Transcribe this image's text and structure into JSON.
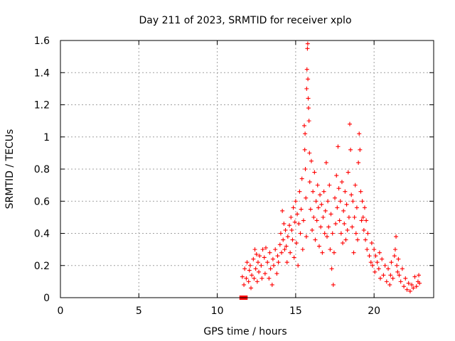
{
  "chart_data": {
    "type": "scatter",
    "title": "Day 211 of 2023, SRMTID for receiver xplo",
    "xlabel": "GPS time / hours",
    "ylabel": "SRMTID / TECUs",
    "xlim": [
      0,
      23.8
    ],
    "ylim": [
      0,
      1.6
    ],
    "xticks": [
      0,
      5,
      10,
      15,
      20
    ],
    "xtick_labels": [
      "0",
      "5",
      "10",
      "15",
      "20"
    ],
    "yticks": [
      0,
      0.2,
      0.4,
      0.6,
      0.8,
      1.0,
      1.2,
      1.4,
      1.6
    ],
    "ytick_labels": [
      "0",
      "0.2",
      "0.4",
      "0.6",
      "0.8",
      "1",
      "1.2",
      "1.4",
      "1.6"
    ],
    "grid": true,
    "marker": "plus",
    "color": "#ff0000",
    "series": [
      {
        "name": "SRMTID",
        "points": [
          [
            11.55,
            0.0
          ],
          [
            11.8,
            0.0
          ],
          [
            11.6,
            0.13
          ],
          [
            11.7,
            0.08
          ],
          [
            11.75,
            0.18
          ],
          [
            11.85,
            0.12
          ],
          [
            11.9,
            0.22
          ],
          [
            12.0,
            0.1
          ],
          [
            12.05,
            0.17
          ],
          [
            12.1,
            0.2
          ],
          [
            12.15,
            0.06
          ],
          [
            12.2,
            0.14
          ],
          [
            12.3,
            0.24
          ],
          [
            12.35,
            0.12
          ],
          [
            12.4,
            0.3
          ],
          [
            12.45,
            0.18
          ],
          [
            12.5,
            0.27
          ],
          [
            12.55,
            0.1
          ],
          [
            12.6,
            0.22
          ],
          [
            12.65,
            0.16
          ],
          [
            12.7,
            0.26
          ],
          [
            12.8,
            0.2
          ],
          [
            12.85,
            0.12
          ],
          [
            12.9,
            0.3
          ],
          [
            13.0,
            0.25
          ],
          [
            13.05,
            0.15
          ],
          [
            13.1,
            0.31
          ],
          [
            13.2,
            0.22
          ],
          [
            13.3,
            0.12
          ],
          [
            13.35,
            0.28
          ],
          [
            13.4,
            0.18
          ],
          [
            13.5,
            0.08
          ],
          [
            13.55,
            0.24
          ],
          [
            13.6,
            0.2
          ],
          [
            13.7,
            0.3
          ],
          [
            13.8,
            0.15
          ],
          [
            13.85,
            0.26
          ],
          [
            13.9,
            0.22
          ],
          [
            14.0,
            0.33
          ],
          [
            14.05,
            0.4
          ],
          [
            14.1,
            0.28
          ],
          [
            14.15,
            0.54
          ],
          [
            14.2,
            0.36
          ],
          [
            14.25,
            0.46
          ],
          [
            14.3,
            0.3
          ],
          [
            14.35,
            0.42
          ],
          [
            14.4,
            0.32
          ],
          [
            14.45,
            0.22
          ],
          [
            14.5,
            0.38
          ],
          [
            14.6,
            0.45
          ],
          [
            14.65,
            0.28
          ],
          [
            14.7,
            0.5
          ],
          [
            14.75,
            0.42
          ],
          [
            14.8,
            0.36
          ],
          [
            14.85,
            0.56
          ],
          [
            14.9,
            0.25
          ],
          [
            14.95,
            0.47
          ],
          [
            15.0,
            0.6
          ],
          [
            15.05,
            0.34
          ],
          [
            15.1,
            0.52
          ],
          [
            15.15,
            0.2
          ],
          [
            15.2,
            0.46
          ],
          [
            15.25,
            0.66
          ],
          [
            15.3,
            0.4
          ],
          [
            15.35,
            0.55
          ],
          [
            15.4,
            0.74
          ],
          [
            15.45,
            0.3
          ],
          [
            15.5,
            0.48
          ],
          [
            15.55,
            1.07
          ],
          [
            15.58,
            0.92
          ],
          [
            15.6,
            1.02
          ],
          [
            15.62,
            0.8
          ],
          [
            15.65,
            0.62
          ],
          [
            15.68,
            0.38
          ],
          [
            15.7,
            1.3
          ],
          [
            15.72,
            1.42
          ],
          [
            15.75,
            1.55
          ],
          [
            15.77,
            1.58
          ],
          [
            15.78,
            1.36
          ],
          [
            15.8,
            1.24
          ],
          [
            15.82,
            1.18
          ],
          [
            15.85,
            1.1
          ],
          [
            15.88,
            0.9
          ],
          [
            15.9,
            0.72
          ],
          [
            15.95,
            0.55
          ],
          [
            16.0,
            0.85
          ],
          [
            16.05,
            0.42
          ],
          [
            16.1,
            0.66
          ],
          [
            16.15,
            0.5
          ],
          [
            16.2,
            0.78
          ],
          [
            16.25,
            0.36
          ],
          [
            16.3,
            0.6
          ],
          [
            16.35,
            0.48
          ],
          [
            16.4,
            0.7
          ],
          [
            16.45,
            0.56
          ],
          [
            16.5,
            0.32
          ],
          [
            16.55,
            0.64
          ],
          [
            16.6,
            0.44
          ],
          [
            16.65,
            0.58
          ],
          [
            16.7,
            0.28
          ],
          [
            16.75,
            0.5
          ],
          [
            16.8,
            0.66
          ],
          [
            16.85,
            0.4
          ],
          [
            16.9,
            0.54
          ],
          [
            16.95,
            0.84
          ],
          [
            17.0,
            0.38
          ],
          [
            17.05,
            0.6
          ],
          [
            17.1,
            0.44
          ],
          [
            17.15,
            0.7
          ],
          [
            17.2,
            0.3
          ],
          [
            17.25,
            0.52
          ],
          [
            17.3,
            0.18
          ],
          [
            17.35,
            0.4
          ],
          [
            17.4,
            0.08
          ],
          [
            17.45,
            0.28
          ],
          [
            17.5,
            0.62
          ],
          [
            17.55,
            0.46
          ],
          [
            17.6,
            0.76
          ],
          [
            17.65,
            0.56
          ],
          [
            17.7,
            0.94
          ],
          [
            17.75,
            0.68
          ],
          [
            17.8,
            0.48
          ],
          [
            17.85,
            0.6
          ],
          [
            17.9,
            0.4
          ],
          [
            17.95,
            0.72
          ],
          [
            18.0,
            0.34
          ],
          [
            18.05,
            0.54
          ],
          [
            18.1,
            0.46
          ],
          [
            18.15,
            0.66
          ],
          [
            18.2,
            0.36
          ],
          [
            18.25,
            0.58
          ],
          [
            18.3,
            0.42
          ],
          [
            18.35,
            0.78
          ],
          [
            18.4,
            0.5
          ],
          [
            18.45,
            1.08
          ],
          [
            18.5,
            0.92
          ],
          [
            18.55,
            0.64
          ],
          [
            18.6,
            0.44
          ],
          [
            18.65,
            0.6
          ],
          [
            18.7,
            0.28
          ],
          [
            18.75,
            0.5
          ],
          [
            18.8,
            0.7
          ],
          [
            18.85,
            0.4
          ],
          [
            18.9,
            0.56
          ],
          [
            18.95,
            0.36
          ],
          [
            19.0,
            0.84
          ],
          [
            19.05,
            1.02
          ],
          [
            19.1,
            0.92
          ],
          [
            19.15,
            0.66
          ],
          [
            19.2,
            0.48
          ],
          [
            19.25,
            0.6
          ],
          [
            19.3,
            0.5
          ],
          [
            19.35,
            0.42
          ],
          [
            19.4,
            0.56
          ],
          [
            19.45,
            0.36
          ],
          [
            19.5,
            0.48
          ],
          [
            19.55,
            0.3
          ],
          [
            19.6,
            0.4
          ],
          [
            19.7,
            0.26
          ],
          [
            19.8,
            0.22
          ],
          [
            19.85,
            0.34
          ],
          [
            19.9,
            0.2
          ],
          [
            20.0,
            0.3
          ],
          [
            20.05,
            0.16
          ],
          [
            20.1,
            0.26
          ],
          [
            20.2,
            0.22
          ],
          [
            20.3,
            0.18
          ],
          [
            20.35,
            0.28
          ],
          [
            20.4,
            0.12
          ],
          [
            20.5,
            0.24
          ],
          [
            20.6,
            0.14
          ],
          [
            20.7,
            0.2
          ],
          [
            20.8,
            0.1
          ],
          [
            20.9,
            0.18
          ],
          [
            21.0,
            0.08
          ],
          [
            21.05,
            0.14
          ],
          [
            21.1,
            0.22
          ],
          [
            21.2,
            0.12
          ],
          [
            21.3,
            0.26
          ],
          [
            21.35,
            0.3
          ],
          [
            21.4,
            0.38
          ],
          [
            21.45,
            0.2
          ],
          [
            21.5,
            0.16
          ],
          [
            21.55,
            0.24
          ],
          [
            21.6,
            0.14
          ],
          [
            21.7,
            0.1
          ],
          [
            21.8,
            0.18
          ],
          [
            21.9,
            0.07
          ],
          [
            22.0,
            0.12
          ],
          [
            22.1,
            0.05
          ],
          [
            22.2,
            0.09
          ],
          [
            22.3,
            0.04
          ],
          [
            22.4,
            0.08
          ],
          [
            22.5,
            0.06
          ],
          [
            22.6,
            0.13
          ],
          [
            22.7,
            0.07
          ],
          [
            22.8,
            0.1
          ],
          [
            22.85,
            0.14
          ],
          [
            22.9,
            0.09
          ]
        ]
      }
    ]
  }
}
